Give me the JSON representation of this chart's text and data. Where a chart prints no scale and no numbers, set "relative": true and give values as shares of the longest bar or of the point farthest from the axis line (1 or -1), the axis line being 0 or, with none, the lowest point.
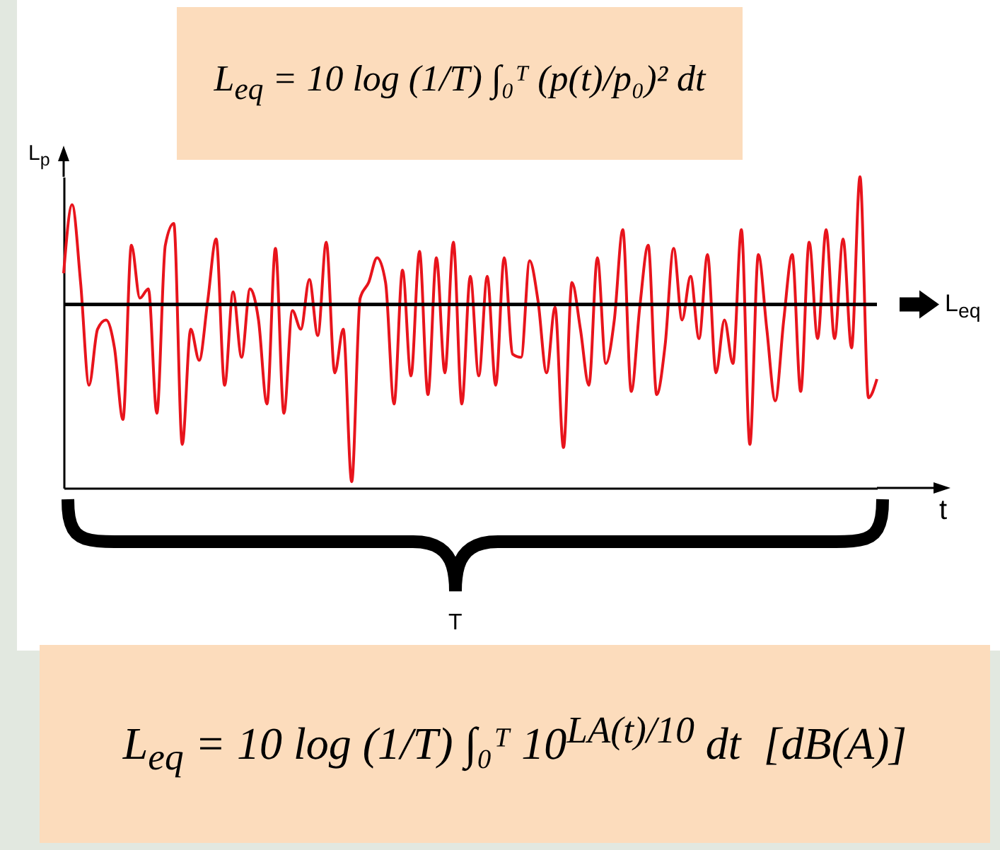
{
  "chart_data": {
    "type": "line",
    "relative": true,
    "xlabel": "t",
    "ylabel": "L$_{p}$",
    "annotations": [
      "L$_{eq}$ = 10 log (1/T) ∫₀ᵀ (p(t)/p₀)² dt",
      "L$_{eq}$ = 10 log (1/T) ∫₀ᵀ 10$^{LA(t)/10}$ dt  [dB(A)]",
      "T"
    ],
    "ref_lines": [
      {
        "axis": "y",
        "value": 0.59,
        "label": "L$_{eq}$",
        "color": "#000000"
      }
    ],
    "categories": [
      null,
      null,
      null,
      null,
      null,
      null,
      null,
      null,
      null,
      null,
      null,
      null,
      null,
      null,
      null,
      null,
      null,
      null,
      null,
      null,
      null,
      null,
      null,
      null,
      null,
      null,
      null,
      null,
      null,
      null,
      null,
      null,
      null,
      null,
      null,
      null,
      null,
      null,
      null,
      null,
      null,
      null,
      null,
      null,
      null,
      null,
      null,
      null,
      null,
      null,
      null,
      null,
      null,
      null,
      null,
      null,
      null,
      null,
      null,
      null,
      null,
      null,
      null,
      null,
      null,
      null,
      null,
      null,
      null,
      null,
      null,
      null,
      null,
      null,
      null,
      null,
      null,
      null,
      null,
      null,
      null,
      null,
      null,
      null,
      null,
      null,
      null,
      null,
      null,
      null,
      null,
      null,
      null,
      null,
      null,
      null,
      null
    ],
    "series": [
      {
        "color": "#e8141c",
        "values": [
          0.69,
          0.91,
          0.66,
          0.33,
          0.51,
          0.54,
          0.45,
          0.22,
          0.78,
          0.61,
          0.64,
          0.24,
          0.78,
          0.85,
          0.14,
          0.51,
          0.41,
          0.6,
          0.8,
          0.33,
          0.63,
          0.42,
          0.64,
          0.54,
          0.27,
          0.77,
          0.24,
          0.57,
          0.51,
          0.67,
          0.49,
          0.79,
          0.37,
          0.51,
          0.02,
          0.61,
          0.66,
          0.74,
          0.66,
          0.27,
          0.7,
          0.36,
          0.76,
          0.3,
          0.74,
          0.37,
          0.79,
          0.27,
          0.68,
          0.36,
          0.68,
          0.33,
          0.74,
          0.43,
          0.42,
          0.73,
          0.6,
          0.37,
          0.58,
          0.13,
          0.66,
          0.51,
          0.33,
          0.74,
          0.4,
          0.54,
          0.83,
          0.31,
          0.58,
          0.78,
          0.3,
          0.46,
          0.77,
          0.54,
          0.68,
          0.48,
          0.75,
          0.37,
          0.54,
          0.4,
          0.83,
          0.14,
          0.75,
          0.51,
          0.28,
          0.54,
          0.75,
          0.31,
          0.79,
          0.48,
          0.83,
          0.48,
          0.8,
          0.45,
          1,
          0.29,
          0.35
        ]
      }
    ]
  }
}
